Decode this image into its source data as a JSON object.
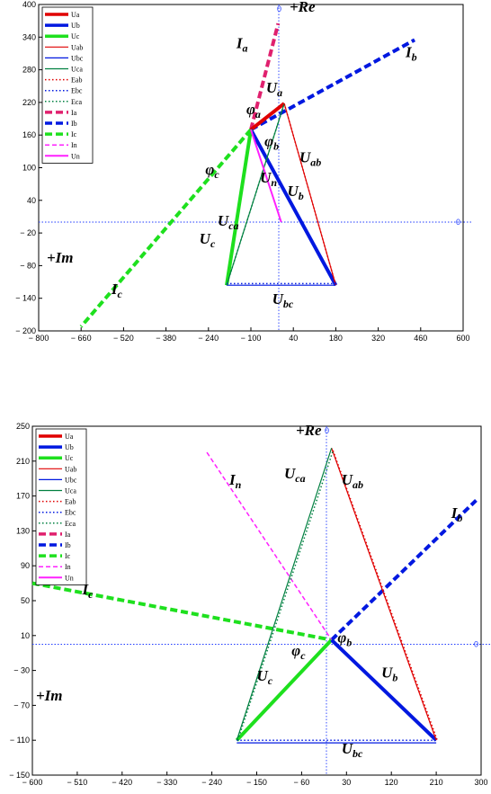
{
  "legend": [
    {
      "name": "Ua",
      "color": "#e00000",
      "width": 4,
      "dash": ""
    },
    {
      "name": "Ub",
      "color": "#0018e0",
      "width": 4,
      "dash": ""
    },
    {
      "name": "Uc",
      "color": "#1ee01e",
      "width": 4,
      "dash": ""
    },
    {
      "name": "Uab",
      "color": "#e00000",
      "width": 1.2,
      "dash": ""
    },
    {
      "name": "Ubc",
      "color": "#0018e0",
      "width": 1.2,
      "dash": ""
    },
    {
      "name": "Uca",
      "color": "#008040",
      "width": 1.2,
      "dash": ""
    },
    {
      "name": "Eab",
      "color": "#e00000",
      "width": 1.5,
      "dash": "1.5,2.5"
    },
    {
      "name": "Ebc",
      "color": "#0018e0",
      "width": 1.5,
      "dash": "1.5,2.5"
    },
    {
      "name": "Eca",
      "color": "#008040",
      "width": 1.5,
      "dash": "1.5,2.5"
    },
    {
      "name": "Ia",
      "color": "#e0206e",
      "width": 4,
      "dash": "8,4"
    },
    {
      "name": "Ib",
      "color": "#0018e0",
      "width": 4,
      "dash": "8,4"
    },
    {
      "name": "Ic",
      "color": "#1ee01e",
      "width": 4,
      "dash": "8,4"
    },
    {
      "name": "In",
      "color": "#ff20ff",
      "width": 1.5,
      "dash": "5,3"
    },
    {
      "name": "Un",
      "color": "#ff20ff",
      "width": 2,
      "dash": ""
    }
  ],
  "chart_data": [
    {
      "type": "line",
      "xlim": [
        -800,
        600
      ],
      "ylim": [
        -200,
        400
      ],
      "x_ticks": [
        -800,
        -660,
        -520,
        -380,
        -240,
        -100,
        40,
        180,
        320,
        460,
        600
      ],
      "x_tick_labels": [
        "− 800",
        "− 660",
        "− 520",
        "− 380",
        "− 240",
        "− 100",
        "40",
        "180",
        "320",
        "460",
        "600"
      ],
      "y_ticks": [
        400,
        340,
        280,
        220,
        160,
        100,
        40,
        -20,
        -80,
        -140,
        -200
      ],
      "y_tick_labels": [
        "400",
        "340",
        "280",
        "220",
        "160",
        "100",
        "40",
        "− 20",
        "− 80",
        "− 140",
        "− 200"
      ],
      "axis_titles": {
        "re": "+Re",
        "im": "+Im"
      },
      "zero_label": "0",
      "series": [
        {
          "name": "Ia",
          "x": [
            -100,
            -10
          ],
          "y": [
            170,
            365
          ]
        },
        {
          "name": "Ib",
          "x": [
            -100,
            440
          ],
          "y": [
            170,
            335
          ]
        },
        {
          "name": "Ic",
          "x": [
            -100,
            -660
          ],
          "y": [
            170,
            -192
          ]
        },
        {
          "name": "Ua",
          "x": [
            -100,
            10
          ],
          "y": [
            170,
            218
          ]
        },
        {
          "name": "Ub",
          "x": [
            -100,
            180
          ],
          "y": [
            170,
            -116
          ]
        },
        {
          "name": "Uc",
          "x": [
            -100,
            -180
          ],
          "y": [
            170,
            -116
          ]
        },
        {
          "name": "Uab",
          "x": [
            10,
            180
          ],
          "y": [
            218,
            -116
          ]
        },
        {
          "name": "Ubc",
          "x": [
            -180,
            180
          ],
          "y": [
            -116,
            -116
          ]
        },
        {
          "name": "Uca",
          "x": [
            -180,
            10
          ],
          "y": [
            -116,
            218
          ]
        },
        {
          "name": "Eab",
          "x": [
            10,
            180
          ],
          "y": [
            218,
            -116
          ]
        },
        {
          "name": "Ebc",
          "x": [
            -180,
            180
          ],
          "y": [
            -113,
            -113
          ]
        },
        {
          "name": "Eca",
          "x": [
            -180,
            10
          ],
          "y": [
            -116,
            218
          ]
        },
        {
          "name": "Un",
          "x": [
            -100,
            0
          ],
          "y": [
            170,
            0
          ]
        }
      ],
      "annotations": [
        {
          "text": "I",
          "sub": "a",
          "x": -148,
          "y": 320
        },
        {
          "text": "I",
          "sub": "b",
          "x": 410,
          "y": 303
        },
        {
          "text": "I",
          "sub": "c",
          "x": -560,
          "y": -132
        },
        {
          "text": "U",
          "sub": "a",
          "x": -50,
          "y": 238
        },
        {
          "text": "φ",
          "sub": "a",
          "x": -115,
          "y": 198
        },
        {
          "text": "φ",
          "sub": "b",
          "x": -55,
          "y": 140
        },
        {
          "text": "φ",
          "sub": "c",
          "x": -250,
          "y": 88
        },
        {
          "text": "U",
          "sub": "ab",
          "x": 60,
          "y": 110
        },
        {
          "text": "U",
          "sub": "n",
          "x": -70,
          "y": 73
        },
        {
          "text": "U",
          "sub": "b",
          "x": 20,
          "y": 48
        },
        {
          "text": "U",
          "sub": "ca",
          "x": -210,
          "y": -7
        },
        {
          "text": "U",
          "sub": "c",
          "x": -270,
          "y": -40
        },
        {
          "text": "U",
          "sub": "bc",
          "x": -30,
          "y": -150
        }
      ]
    },
    {
      "type": "line",
      "xlim": [
        -600,
        300
      ],
      "ylim": [
        -150,
        250
      ],
      "x_ticks": [
        -600,
        -510,
        -420,
        -330,
        -240,
        -150,
        -60,
        30,
        120,
        210,
        300
      ],
      "x_tick_labels": [
        "− 600",
        "− 510",
        "− 420",
        "− 330",
        "− 240",
        "− 150",
        "− 60",
        "30",
        "120",
        "210",
        "300"
      ],
      "y_ticks": [
        250,
        210,
        170,
        130,
        90,
        50,
        10,
        -30,
        -70,
        -110,
        -150
      ],
      "y_tick_labels": [
        "250",
        "210",
        "170",
        "130",
        "90",
        "50",
        "10",
        "− 30",
        "− 70",
        "− 110",
        "− 150"
      ],
      "axis_titles": {
        "re": "+Re",
        "im": "+Im"
      },
      "zero_label": "0",
      "series": [
        {
          "name": "Ic",
          "x": [
            -600,
            0
          ],
          "y": [
            70,
            5
          ]
        },
        {
          "name": "Ib",
          "x": [
            0,
            290
          ],
          "y": [
            5,
            165
          ]
        },
        {
          "name": "In",
          "x": [
            -250,
            0
          ],
          "y": [
            220,
            5
          ]
        },
        {
          "name": "Uc",
          "x": [
            0,
            -190
          ],
          "y": [
            5,
            -110
          ]
        },
        {
          "name": "Ub",
          "x": [
            0,
            210
          ],
          "y": [
            5,
            -110
          ]
        },
        {
          "name": "Uab",
          "x": [
            0,
            210
          ],
          "y": [
            225,
            -110
          ]
        },
        {
          "name": "Eab",
          "x": [
            3,
            212
          ],
          "y": [
            222,
            -110
          ]
        },
        {
          "name": "Ubc",
          "x": [
            -190,
            210
          ],
          "y": [
            -113,
            -113
          ]
        },
        {
          "name": "Ebc",
          "x": [
            -190,
            210
          ],
          "y": [
            -110,
            -110
          ]
        },
        {
          "name": "Uca",
          "x": [
            -190,
            0
          ],
          "y": [
            -110,
            225
          ]
        },
        {
          "name": "Eca",
          "x": [
            -188,
            3
          ],
          "y": [
            -110,
            222
          ]
        }
      ],
      "annotations": [
        {
          "text": "I",
          "sub": "n",
          "x": -205,
          "y": 183
        },
        {
          "text": "U",
          "sub": "ca",
          "x": -95,
          "y": 190
        },
        {
          "text": "U",
          "sub": "ab",
          "x": 20,
          "y": 183
        },
        {
          "text": "I",
          "sub": "b",
          "x": 240,
          "y": 145
        },
        {
          "text": "I",
          "sub": "c",
          "x": -500,
          "y": 57
        },
        {
          "text": "φ",
          "sub": "c",
          "x": -80,
          "y": -13
        },
        {
          "text": "φ",
          "sub": "b",
          "x": 12,
          "y": 2
        },
        {
          "text": "U",
          "sub": "c",
          "x": -150,
          "y": -42
        },
        {
          "text": "U",
          "sub": "b",
          "x": 100,
          "y": -38
        },
        {
          "text": "U",
          "sub": "bc",
          "x": 20,
          "y": -125
        }
      ]
    }
  ]
}
